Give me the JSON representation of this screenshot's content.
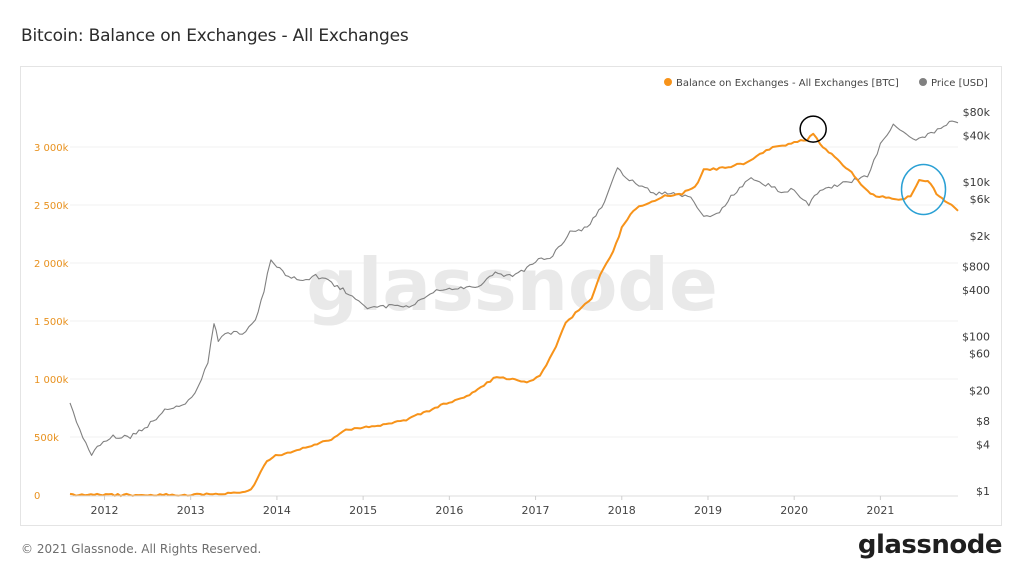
{
  "page": {
    "title": "Bitcoin: Balance on Exchanges - All Exchanges",
    "footer": "© 2021 Glassnode. All Rights Reserved.",
    "brand": "glassnode",
    "watermark": "glassnode"
  },
  "chart_data": {
    "type": "line",
    "title": "Bitcoin: Balance on Exchanges - All Exchanges",
    "xlabel": "",
    "x_ticks": [
      "2012",
      "2013",
      "2014",
      "2015",
      "2016",
      "2017",
      "2018",
      "2019",
      "2020",
      "2021"
    ],
    "x_range": [
      2011.6,
      2021.9
    ],
    "left_axis": {
      "ticks": [
        {
          "value": 0,
          "label": "0"
        },
        {
          "value": 500000,
          "label": "500k"
        },
        {
          "value": 1000000,
          "label": "1 000k"
        },
        {
          "value": 1500000,
          "label": "1 500k"
        },
        {
          "value": 2000000,
          "label": "2 000k"
        },
        {
          "value": 2500000,
          "label": "2 500k"
        },
        {
          "value": 3000000,
          "label": "3 000k"
        }
      ],
      "range": [
        0,
        3400000
      ]
    },
    "right_axis": {
      "scale": "log",
      "ticks": [
        {
          "value": 1,
          "label": "$1"
        },
        {
          "value": 4,
          "label": "$4"
        },
        {
          "value": 8,
          "label": "$8"
        },
        {
          "value": 20,
          "label": "$20"
        },
        {
          "value": 60,
          "label": "$60"
        },
        {
          "value": 100,
          "label": "$100"
        },
        {
          "value": 400,
          "label": "$400"
        },
        {
          "value": 800,
          "label": "$800"
        },
        {
          "value": 2000,
          "label": "$2k"
        },
        {
          "value": 6000,
          "label": "$6k"
        },
        {
          "value": 10000,
          "label": "$10k"
        },
        {
          "value": 40000,
          "label": "$40k"
        },
        {
          "value": 80000,
          "label": "$80k"
        }
      ]
    },
    "legend_position": "top-right",
    "grid": true,
    "series": [
      {
        "name": "Balance on Exchanges - All Exchanges [BTC]",
        "axis": "left",
        "color": "#f7931a",
        "x": [
          2011.6,
          2012.5,
          2013.0,
          2013.4,
          2013.7,
          2013.85,
          2013.95,
          2014.3,
          2014.6,
          2014.8,
          2015.0,
          2015.2,
          2015.5,
          2015.8,
          2016.0,
          2016.2,
          2016.4,
          2016.55,
          2016.7,
          2016.9,
          2017.05,
          2017.2,
          2017.35,
          2017.5,
          2017.65,
          2017.75,
          2017.9,
          2018.0,
          2018.1,
          2018.2,
          2018.35,
          2018.5,
          2018.7,
          2018.85,
          2018.95,
          2019.1,
          2019.3,
          2019.45,
          2019.6,
          2019.75,
          2019.9,
          2020.0,
          2020.15,
          2020.22,
          2020.3,
          2020.5,
          2020.7,
          2020.85,
          2020.95,
          2021.1,
          2021.25,
          2021.35,
          2021.45,
          2021.55,
          2021.65,
          2021.75,
          2021.9
        ],
        "y": [
          0,
          0,
          2000,
          12000,
          40000,
          260000,
          330000,
          400000,
          470000,
          560000,
          580000,
          600000,
          650000,
          740000,
          800000,
          850000,
          950000,
          1020000,
          1000000,
          980000,
          1020000,
          1220000,
          1480000,
          1600000,
          1700000,
          1900000,
          2100000,
          2300000,
          2420000,
          2480000,
          2530000,
          2580000,
          2600000,
          2650000,
          2800000,
          2810000,
          2840000,
          2860000,
          2940000,
          3000000,
          3010000,
          3040000,
          3060000,
          3120000,
          3020000,
          2900000,
          2750000,
          2620000,
          2580000,
          2560000,
          2540000,
          2580000,
          2720000,
          2710000,
          2600000,
          2540000,
          2450000
        ]
      },
      {
        "name": "Price [USD]",
        "axis": "right",
        "color": "#808080",
        "x": [
          2011.6,
          2011.75,
          2011.85,
          2011.95,
          2012.1,
          2012.3,
          2012.5,
          2012.7,
          2012.9,
          2013.05,
          2013.2,
          2013.27,
          2013.32,
          2013.4,
          2013.6,
          2013.75,
          2013.85,
          2013.93,
          2014.0,
          2014.1,
          2014.3,
          2014.45,
          2014.6,
          2014.8,
          2014.95,
          2015.05,
          2015.2,
          2015.4,
          2015.6,
          2015.85,
          2016.0,
          2016.3,
          2016.5,
          2016.7,
          2016.9,
          2017.0,
          2017.2,
          2017.4,
          2017.6,
          2017.8,
          2017.95,
          2018.05,
          2018.2,
          2018.4,
          2018.6,
          2018.8,
          2018.95,
          2019.1,
          2019.3,
          2019.5,
          2019.7,
          2019.85,
          2020.0,
          2020.17,
          2020.3,
          2020.5,
          2020.7,
          2020.85,
          2021.0,
          2021.15,
          2021.3,
          2021.45,
          2021.55,
          2021.7,
          2021.8,
          2021.9
        ],
        "y": [
          13,
          5,
          3,
          4,
          5,
          5,
          7,
          11,
          13,
          18,
          45,
          150,
          90,
          110,
          110,
          160,
          400,
          1000,
          800,
          650,
          500,
          600,
          520,
          380,
          300,
          230,
          250,
          240,
          260,
          380,
          420,
          420,
          650,
          600,
          750,
          950,
          1100,
          2200,
          2600,
          5500,
          15000,
          11000,
          9000,
          7000,
          7000,
          6500,
          3700,
          3800,
          7000,
          11000,
          9000,
          7500,
          8000,
          5000,
          8000,
          9200,
          10500,
          12000,
          30000,
          55000,
          40000,
          35000,
          40000,
          48000,
          60000,
          58000
        ]
      }
    ],
    "annotations": [
      {
        "type": "circle",
        "color": "#000000",
        "x": 2020.22,
        "series": 0
      },
      {
        "type": "circle",
        "color": "#2aa0d4",
        "x": 2021.5,
        "series": 0
      }
    ]
  }
}
